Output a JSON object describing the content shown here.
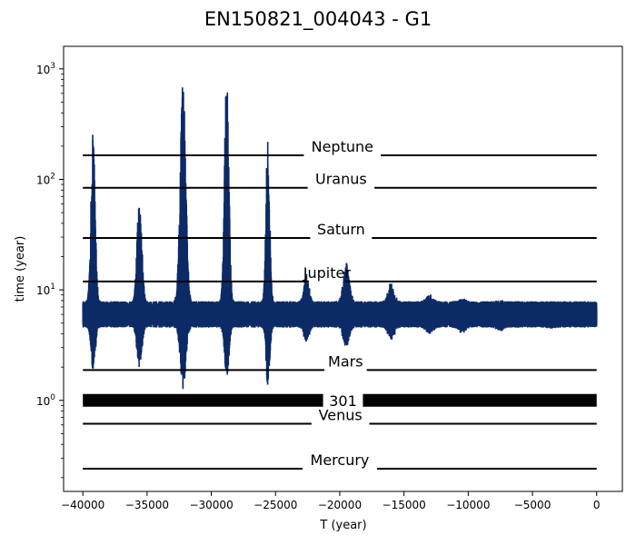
{
  "chart_data": {
    "type": "line",
    "title": "EN150821_004043 - G1",
    "xlabel": "T (year)",
    "ylabel": "time (year)",
    "xlim": [
      -41500,
      2000
    ],
    "ylim": [
      0.15,
      1600
    ],
    "yscale": "log",
    "x_ticks": [
      {
        "value": -40000,
        "label": "−40000"
      },
      {
        "value": -35000,
        "label": "−35000"
      },
      {
        "value": -30000,
        "label": "−30000"
      },
      {
        "value": -25000,
        "label": "−25000"
      },
      {
        "value": -20000,
        "label": "−20000"
      },
      {
        "value": -15000,
        "label": "−15000"
      },
      {
        "value": -10000,
        "label": "−10000"
      },
      {
        "value": -5000,
        "label": "−5000"
      },
      {
        "value": 0,
        "label": "0"
      }
    ],
    "y_ticks": [
      {
        "value": 1,
        "base": "10",
        "exp": "0"
      },
      {
        "value": 10,
        "base": "10",
        "exp": "1"
      },
      {
        "value": 100,
        "base": "10",
        "exp": "2"
      },
      {
        "value": 1000,
        "base": "10",
        "exp": "3"
      }
    ],
    "grid": false,
    "reference_lines": [
      {
        "name": "Neptune",
        "y": 165,
        "x_range": [
          -40000,
          0
        ],
        "gap": [
          -22800,
          -16800
        ]
      },
      {
        "name": "Uranus",
        "y": 84,
        "x_range": [
          -40000,
          0
        ],
        "gap": [
          -22500,
          -17300
        ]
      },
      {
        "name": "Saturn",
        "y": 29.5,
        "x_range": [
          -40000,
          0
        ],
        "gap": [
          -22300,
          -17500
        ]
      },
      {
        "name": "Jupiter",
        "y": 11.9,
        "x_range": [
          -40000,
          0
        ],
        "gap": [
          -22400,
          -19600
        ]
      },
      {
        "name": "Mars",
        "y": 1.88,
        "x_range": [
          -40000,
          0
        ],
        "gap": [
          -21200,
          -17900
        ]
      },
      {
        "name": "301",
        "y": 1.0,
        "x_range": [
          -40000,
          0
        ],
        "gap": [
          -21300,
          -18200
        ],
        "thick": true
      },
      {
        "name": "Venus",
        "y": 0.615,
        "x_range": [
          -40000,
          0
        ],
        "gap": [
          -22200,
          -17700
        ]
      },
      {
        "name": "Mercury",
        "y": 0.241,
        "x_range": [
          -40000,
          0
        ],
        "gap": [
          -22900,
          -17100
        ]
      }
    ],
    "series": [
      {
        "color": "#0b2a66",
        "baseline": 6.0,
        "x_range": [
          -40000,
          0
        ],
        "spikes": [
          {
            "x": -39200,
            "peak": 290,
            "trough": 1.9,
            "width": 350
          },
          {
            "x": -35600,
            "peak": 68,
            "trough": 2.0,
            "width": 400
          },
          {
            "x": -32200,
            "peak": 900,
            "trough": 1.3,
            "width": 450
          },
          {
            "x": -28800,
            "peak": 1080,
            "trough": 1.6,
            "width": 350
          },
          {
            "x": -25600,
            "peak": 300,
            "trough": 1.3,
            "width": 300
          },
          {
            "x": -22600,
            "peak": 14,
            "trough": 3.3,
            "width": 400
          },
          {
            "x": -19500,
            "peak": 17,
            "trough": 3.0,
            "width": 500
          },
          {
            "x": -16000,
            "peak": 11,
            "trough": 3.6,
            "width": 500
          },
          {
            "x": -13000,
            "peak": 8.5,
            "trough": 4.2,
            "width": 600
          },
          {
            "x": -10500,
            "peak": 8.0,
            "trough": 4.3,
            "width": 600
          },
          {
            "x": -7500,
            "peak": 7.5,
            "trough": 4.5,
            "width": 600
          },
          {
            "x": -3500,
            "peak": 6.8,
            "trough": 4.8,
            "width": 800
          }
        ]
      }
    ]
  }
}
